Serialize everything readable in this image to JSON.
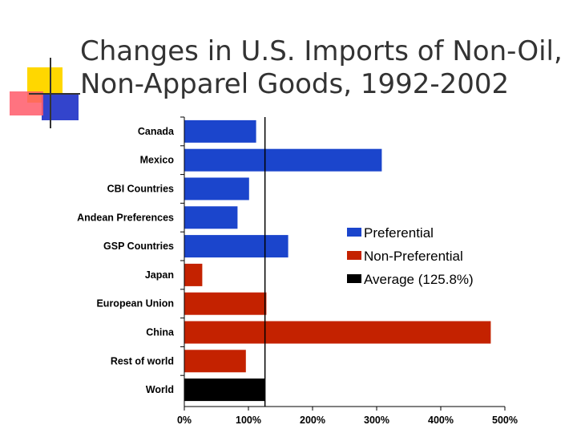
{
  "slide": {
    "title_lines": [
      "Changes in U.S. Imports of Non-Oil,",
      "Non-Apparel Goods, 1992-2002"
    ]
  },
  "chart_data": {
    "type": "bar",
    "orientation": "horizontal",
    "categories": [
      "Canada",
      "Mexico",
      "CBI Countries",
      "Andean Preferences",
      "GSP Countries",
      "Japan",
      "European Union",
      "China",
      "Rest of world",
      "World"
    ],
    "values": [
      112,
      308,
      101,
      83,
      162,
      28,
      128,
      478,
      96,
      125.8
    ],
    "bar_groups": [
      "Preferential",
      "Preferential",
      "Preferential",
      "Preferential",
      "Preferential",
      "Non-Preferential",
      "Non-Preferential",
      "Non-Preferential",
      "Non-Preferential",
      "Average (125.8%)"
    ],
    "series": [
      {
        "name": "Preferential",
        "color": "#1b45cc"
      },
      {
        "name": "Non-Preferential",
        "color": "#c42200"
      },
      {
        "name": "Average (125.8%)",
        "color": "#000000"
      }
    ],
    "x_ticks": [
      "0%",
      "100%",
      "200%",
      "300%",
      "400%",
      "500%"
    ],
    "x_tick_values": [
      0,
      100,
      200,
      300,
      400,
      500
    ],
    "xlim": [
      0,
      500
    ],
    "reference_line": 125.8,
    "legend_position": "right",
    "grid": false
  }
}
